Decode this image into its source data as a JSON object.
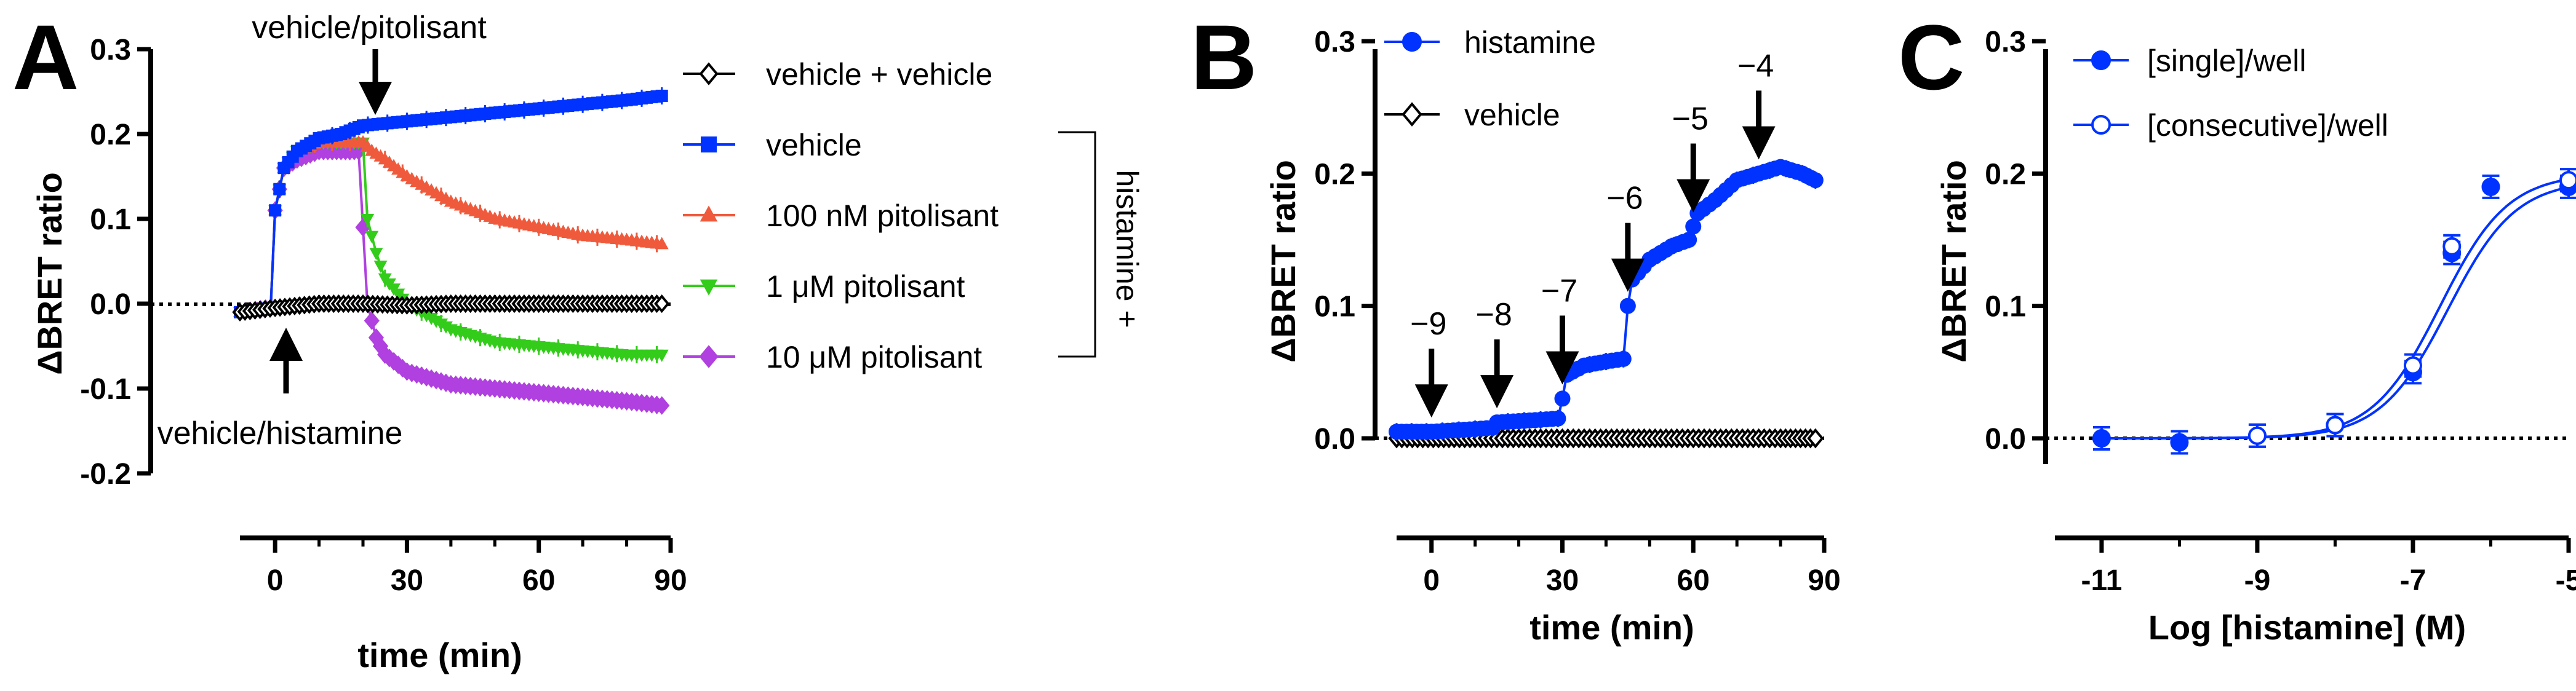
{
  "colors": {
    "vehicle_vehicle": "#000000",
    "blue": "#0033ff",
    "red": "#f05a3c",
    "green": "#33cc1a",
    "purple": "#b040e0"
  },
  "chart_data": [
    {
      "panel": "A",
      "type": "line",
      "xlabel": "time (min)",
      "ylabel": "ΔBRET ratio",
      "xlim": [
        -8,
        90
      ],
      "ylim": [
        -0.2,
        0.3
      ],
      "x_ticks": [
        0,
        30,
        60,
        90
      ],
      "y_ticks": [
        -0.2,
        -0.1,
        0.0,
        0.1,
        0.2,
        0.3
      ],
      "x_tick_labels": [
        "0",
        "30",
        "60",
        "90"
      ],
      "y_tick_labels": [
        "-0.2",
        "-0.1",
        "0.0",
        "0.1",
        "0.2",
        "0.3"
      ],
      "annotations": [
        {
          "text": "vehicle/pitolisant",
          "at_x": 20,
          "arrow": "down"
        },
        {
          "text": "vehicle/histamine",
          "at_x": 0,
          "arrow": "up"
        }
      ],
      "bracket_label": "histamine +",
      "legend": [
        {
          "name": "vehicle + vehicle",
          "marker": "open-diamond",
          "color_key": "vehicle_vehicle"
        },
        {
          "name": "vehicle",
          "marker": "square",
          "color_key": "blue"
        },
        {
          "name": "100 nM pitolisant",
          "marker": "triangle-up",
          "color_key": "red"
        },
        {
          "name": "1 μM pitolisant",
          "marker": "triangle-down",
          "color_key": "green"
        },
        {
          "name": "10 μM pitolisant",
          "marker": "diamond",
          "color_key": "purple"
        }
      ],
      "series": [
        {
          "name": "vehicle + vehicle",
          "x": [
            -8,
            0,
            10,
            20,
            30,
            40,
            50,
            60,
            70,
            80,
            88
          ],
          "y": [
            -0.01,
            -0.005,
            0.0,
            0.0,
            -0.002,
            0.0,
            0.0,
            0.0,
            0.0,
            0.0,
            0.0
          ]
        },
        {
          "name": "vehicle",
          "x": [
            -8,
            -1,
            0,
            2,
            5,
            10,
            15,
            20,
            30,
            40,
            50,
            60,
            70,
            80,
            88
          ],
          "y": [
            -0.01,
            -0.005,
            0.11,
            0.16,
            0.18,
            0.195,
            0.2,
            0.21,
            0.215,
            0.22,
            0.225,
            0.23,
            0.235,
            0.24,
            0.245
          ]
        },
        {
          "name": "100 nM pitolisant",
          "x": [
            -8,
            -1,
            0,
            2,
            5,
            10,
            15,
            20,
            22,
            25,
            30,
            40,
            50,
            60,
            70,
            80,
            88
          ],
          "y": [
            -0.01,
            -0.005,
            0.11,
            0.16,
            0.18,
            0.19,
            0.19,
            0.19,
            0.18,
            0.17,
            0.15,
            0.12,
            0.1,
            0.09,
            0.08,
            0.075,
            0.07
          ]
        },
        {
          "name": "1 μM pitolisant",
          "x": [
            -8,
            -1,
            0,
            2,
            5,
            10,
            15,
            20,
            21,
            23,
            25,
            30,
            40,
            50,
            60,
            70,
            80,
            88
          ],
          "y": [
            -0.01,
            -0.005,
            0.11,
            0.16,
            0.18,
            0.19,
            0.19,
            0.19,
            0.1,
            0.06,
            0.03,
            0.0,
            -0.03,
            -0.045,
            -0.05,
            -0.055,
            -0.06,
            -0.06
          ]
        },
        {
          "name": "10 μM pitolisant",
          "x": [
            -8,
            -1,
            0,
            2,
            5,
            10,
            15,
            19,
            20,
            21,
            23,
            25,
            30,
            40,
            50,
            60,
            70,
            80,
            88
          ],
          "y": [
            -0.01,
            -0.005,
            0.11,
            0.16,
            0.17,
            0.18,
            0.18,
            0.18,
            0.09,
            0.0,
            -0.04,
            -0.06,
            -0.08,
            -0.095,
            -0.1,
            -0.105,
            -0.11,
            -0.115,
            -0.12
          ]
        }
      ]
    },
    {
      "panel": "B",
      "type": "line",
      "xlabel": "time (min)",
      "ylabel": "ΔBRET ratio",
      "xlim": [
        -8,
        90
      ],
      "ylim": [
        0.0,
        0.3
      ],
      "x_ticks": [
        0,
        30,
        60,
        90
      ],
      "y_ticks": [
        0.0,
        0.1,
        0.2,
        0.3
      ],
      "x_tick_labels": [
        "0",
        "30",
        "60",
        "90"
      ],
      "y_tick_labels": [
        "0.0",
        "0.1",
        "0.2",
        "0.3"
      ],
      "additions": [
        {
          "label": "−9",
          "x": 0
        },
        {
          "label": "−8",
          "x": 15
        },
        {
          "label": "−7",
          "x": 30
        },
        {
          "label": "−6",
          "x": 45
        },
        {
          "label": "−5",
          "x": 60
        },
        {
          "label": "−4",
          "x": 75
        }
      ],
      "legend": [
        {
          "name": "histamine",
          "marker": "circle",
          "color_key": "blue"
        },
        {
          "name": "vehicle",
          "marker": "open-diamond",
          "color_key": "vehicle_vehicle"
        }
      ],
      "series": [
        {
          "name": "histamine",
          "x": [
            -8,
            0,
            5,
            10,
            14,
            15,
            20,
            25,
            29,
            30,
            31,
            35,
            40,
            44,
            45,
            46,
            50,
            55,
            59,
            60,
            61,
            65,
            70,
            75,
            80,
            85,
            88
          ],
          "y": [
            0.005,
            0.005,
            0.006,
            0.007,
            0.008,
            0.012,
            0.013,
            0.014,
            0.015,
            0.03,
            0.048,
            0.055,
            0.058,
            0.06,
            0.1,
            0.12,
            0.135,
            0.145,
            0.15,
            0.16,
            0.17,
            0.18,
            0.195,
            0.2,
            0.205,
            0.2,
            0.195
          ]
        },
        {
          "name": "vehicle",
          "x": [
            -8,
            10,
            20,
            30,
            40,
            50,
            60,
            70,
            80,
            88
          ],
          "y": [
            0.0,
            0.0,
            0.0,
            0.0,
            0.0,
            0.0,
            0.0,
            0.0,
            0.0,
            0.0
          ]
        }
      ]
    },
    {
      "panel": "C",
      "type": "line",
      "xlabel": "Log [histamine] (M)",
      "ylabel": "ΔBRET ratio",
      "xlim": [
        -11.6,
        -5
      ],
      "ylim": [
        0.0,
        0.3
      ],
      "x_ticks": [
        -11,
        -9,
        -7,
        -5
      ],
      "y_ticks": [
        0.0,
        0.1,
        0.2,
        0.3
      ],
      "x_tick_labels": [
        "-11",
        "-9",
        "-7",
        "-5"
      ],
      "y_tick_labels": [
        "0.0",
        "0.1",
        "0.2",
        "0.3"
      ],
      "legend": [
        {
          "name": "[single]/well",
          "marker": "circle",
          "color_key": "blue"
        },
        {
          "name": "[consecutive]/well",
          "marker": "open-circle",
          "color_key": "blue"
        }
      ],
      "series": [
        {
          "name": "[single]/well",
          "x": [
            -11,
            -10,
            -9,
            -8,
            -7,
            -6.5,
            -6,
            -5
          ],
          "y": [
            0.0,
            -0.003,
            0.002,
            0.01,
            0.05,
            0.14,
            0.19,
            0.19
          ],
          "fit": {
            "bottom": 0.0,
            "top": 0.195,
            "logEC50": -6.55,
            "hill": 1.0
          }
        },
        {
          "name": "[consecutive]/well",
          "x": [
            -9,
            -8,
            -7,
            -6.5,
            -5
          ],
          "y": [
            0.002,
            0.01,
            0.055,
            0.145,
            0.195
          ],
          "fit": {
            "bottom": 0.0,
            "top": 0.2,
            "logEC50": -6.65,
            "hill": 1.0
          }
        }
      ]
    }
  ]
}
